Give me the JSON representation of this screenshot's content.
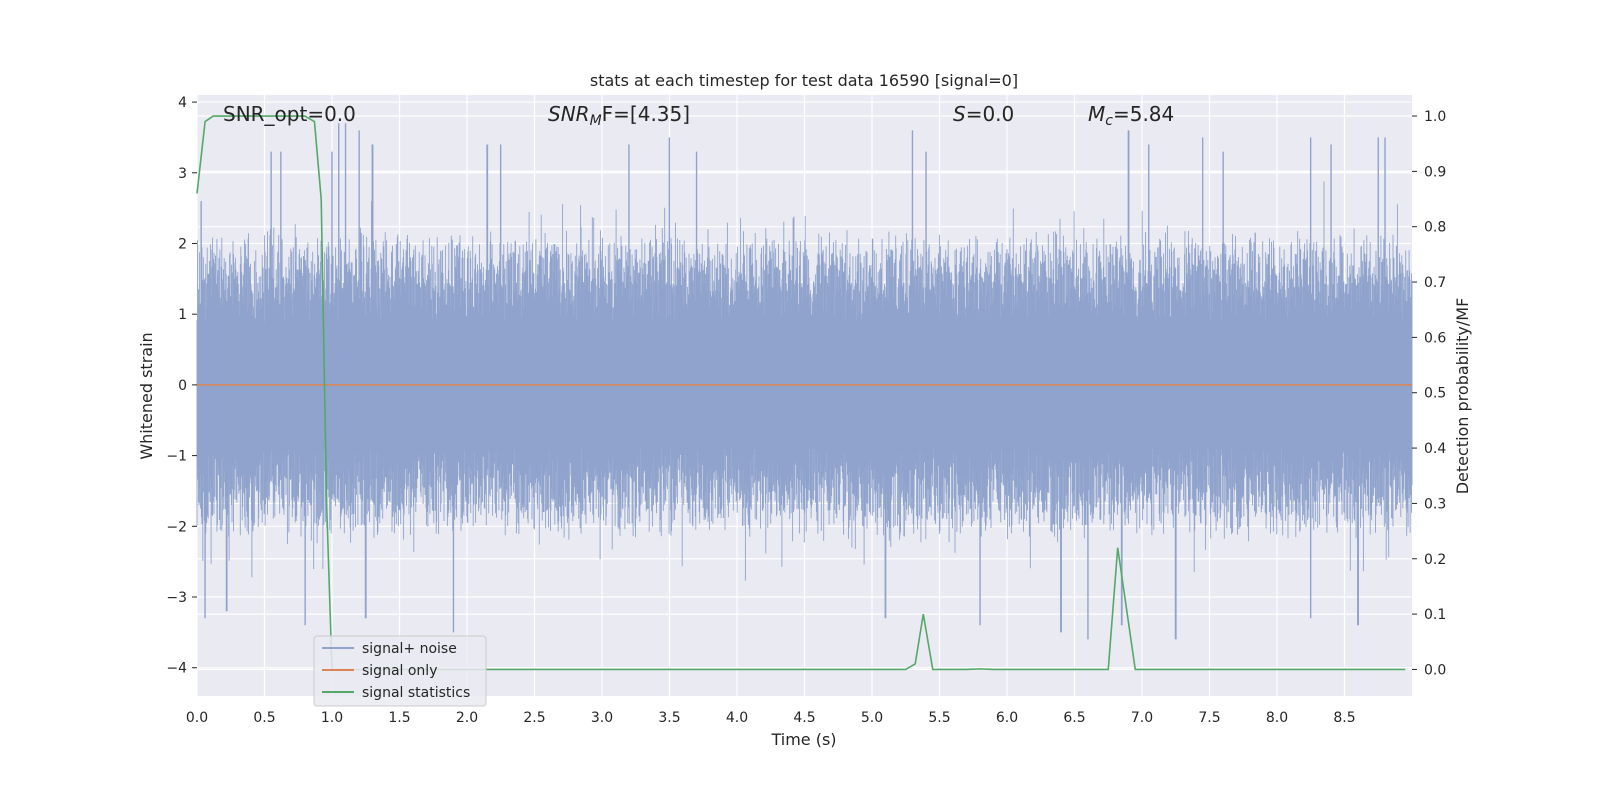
{
  "chart_data": {
    "type": "line",
    "title": "stats at each timestep for test data 16590 [signal=0]",
    "xlabel": "Time (s)",
    "ylabel": "Whitened strain",
    "ylabel_right": "Detection probability/MF",
    "xlim": [
      0.0,
      9.0
    ],
    "ylim": [
      -4.4,
      4.1
    ],
    "ylim_right": [
      -0.048,
      1.038
    ],
    "x_ticks": [
      "0.0",
      "0.5",
      "1.0",
      "1.5",
      "2.0",
      "2.5",
      "3.0",
      "3.5",
      "4.0",
      "4.5",
      "5.0",
      "5.5",
      "6.0",
      "6.5",
      "7.0",
      "7.5",
      "8.0",
      "8.5"
    ],
    "y_ticks": [
      "4",
      "3",
      "2",
      "1",
      "0",
      "−1",
      "−2",
      "−3",
      "−4"
    ],
    "y_ticks_right": [
      "1.0",
      "0.9",
      "0.8",
      "0.7",
      "0.6",
      "0.5",
      "0.4",
      "0.3",
      "0.2",
      "0.1",
      "0.0"
    ],
    "grid": true,
    "legend_position": "lower-left",
    "annotations": {
      "snr_opt": "SNR_opt=0.0",
      "snr_mf_main": "SNR",
      "snr_mf_sub": "M",
      "snr_mf_tail": "F=[4.35]",
      "s_main": "S",
      "s_tail": "=0.0",
      "mc_main": "M",
      "mc_sub": "c",
      "mc_tail": "=5.84"
    },
    "series": [
      {
        "name": "signal+ noise",
        "color": "#8fa3cc",
        "axis": "left",
        "envelope_samples": 2500,
        "upper_typical": 1.9,
        "lower_typical": -1.9,
        "upper_peaks": [
          [
            0.03,
            2.6
          ],
          [
            0.55,
            3.3
          ],
          [
            0.62,
            3.3
          ],
          [
            1.0,
            3.3
          ],
          [
            1.05,
            3.7
          ],
          [
            1.1,
            3.7
          ],
          [
            1.2,
            3.6
          ],
          [
            1.3,
            3.4
          ],
          [
            2.15,
            3.4
          ],
          [
            2.25,
            3.4
          ],
          [
            3.2,
            3.4
          ],
          [
            3.5,
            3.5
          ],
          [
            3.7,
            3.3
          ],
          [
            5.3,
            3.6
          ],
          [
            5.4,
            3.3
          ],
          [
            6.9,
            3.6
          ],
          [
            7.05,
            3.4
          ],
          [
            7.45,
            3.5
          ],
          [
            7.6,
            3.3
          ],
          [
            8.25,
            3.5
          ],
          [
            8.4,
            3.4
          ],
          [
            8.75,
            3.5
          ],
          [
            8.8,
            3.5
          ]
        ],
        "lower_peaks": [
          [
            0.06,
            -3.3
          ],
          [
            0.22,
            -3.2
          ],
          [
            0.8,
            -3.4
          ],
          [
            1.25,
            -3.3
          ],
          [
            1.9,
            -3.5
          ],
          [
            5.1,
            -3.3
          ],
          [
            5.8,
            -3.4
          ],
          [
            6.4,
            -3.5
          ],
          [
            6.6,
            -3.6
          ],
          [
            6.85,
            -3.4
          ],
          [
            7.25,
            -3.6
          ],
          [
            8.25,
            -3.3
          ],
          [
            8.6,
            -3.4
          ]
        ]
      },
      {
        "name": "signal only",
        "color": "#dd8452",
        "axis": "left",
        "x": [
          0.0,
          9.0
        ],
        "y": [
          0.0,
          0.0
        ]
      },
      {
        "name": "signal statistics",
        "color": "#55a868",
        "axis": "right",
        "x": [
          0.0,
          0.06,
          0.12,
          0.2,
          0.4,
          0.6,
          0.8,
          0.87,
          0.92,
          0.96,
          1.0,
          1.2,
          1.5,
          1.8,
          1.95,
          2.0,
          2.5,
          3.0,
          3.5,
          4.0,
          4.5,
          5.0,
          5.25,
          5.32,
          5.38,
          5.45,
          5.5,
          5.7,
          5.8,
          5.9,
          6.0,
          6.5,
          6.75,
          6.82,
          6.95,
          7.0,
          7.5,
          8.0,
          8.5,
          8.95
        ],
        "y": [
          0.86,
          0.99,
          1.0,
          1.0,
          1.0,
          1.0,
          1.0,
          0.99,
          0.85,
          0.3,
          0.0,
          0.0,
          0.0,
          0.0,
          0.0,
          0.0,
          0.0,
          0.0,
          0.0,
          0.0,
          0.0,
          0.0,
          0.0,
          0.01,
          0.1,
          0.0,
          0.0,
          0.0,
          0.001,
          0.0,
          0.0,
          0.0,
          0.0,
          0.22,
          0.0,
          0.0,
          0.0,
          0.0,
          0.0,
          0.0
        ]
      }
    ]
  }
}
